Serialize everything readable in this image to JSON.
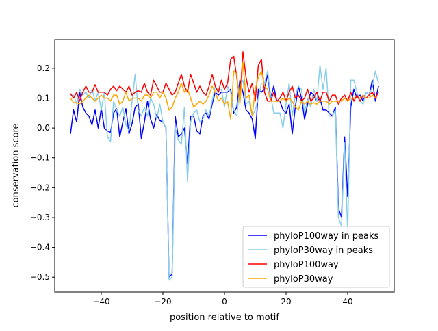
{
  "chart_data": {
    "type": "line",
    "title": "",
    "xlabel": "position relative to motif",
    "ylabel": "conservation score",
    "xlim": [
      -55.1,
      55.1
    ],
    "ylim": [
      -0.55,
      0.296
    ],
    "xticks": [
      -40,
      -20,
      0,
      20,
      40
    ],
    "xtick_labels": [
      "−40",
      "−20",
      "0",
      "20",
      "40"
    ],
    "yticks": [
      -0.5,
      -0.4,
      -0.3,
      -0.2,
      -0.1,
      0.0,
      0.1,
      0.2
    ],
    "ytick_labels": [
      "−0.5",
      "−0.4",
      "−0.3",
      "−0.2",
      "−0.1",
      "0.0",
      "0.1",
      "0.2"
    ],
    "grid": false,
    "legend_placement": "lower-right",
    "x_start": -50,
    "x_step": 1,
    "series": [
      {
        "name": "phyloP100way in peaks",
        "color": "#0000ff",
        "values": [
          -0.02,
          0.06,
          0.02,
          0.12,
          0.07,
          0.05,
          0.04,
          0.01,
          0.06,
          0.0,
          0.065,
          0.0,
          -0.01,
          -0.015,
          0.05,
          0.065,
          -0.03,
          0.02,
          0.065,
          -0.02,
          0.015,
          0.07,
          0.08,
          -0.035,
          0.02,
          0.09,
          0.03,
          0.0,
          0.045,
          0.025,
          0.02,
          0.0,
          -0.5,
          -0.49,
          0.04,
          -0.03,
          -0.02,
          0.0,
          -0.12,
          0.04,
          0.04,
          -0.01,
          -0.02,
          0.04,
          0.05,
          0.03,
          0.08,
          0.12,
          0.11,
          0.12,
          0.12,
          0.12,
          0.13,
          0.05,
          0.07,
          0.16,
          0.12,
          0.06,
          0.05,
          0.03,
          -0.035,
          0.13,
          0.12,
          0.13,
          0.18,
          0.1,
          0.14,
          0.09,
          0.09,
          0.06,
          0.05,
          0.08,
          -0.02,
          0.07,
          0.14,
          0.1,
          0.03,
          0.08,
          0.12,
          0.11,
          0.09,
          0.1,
          0.06,
          0.06,
          0.05,
          0.04,
          0.07,
          -0.27,
          -0.3,
          -0.03,
          -0.23,
          0.07,
          0.13,
          0.1,
          0.11,
          0.09,
          0.12,
          0.11,
          0.16,
          0.09,
          0.14
        ]
      },
      {
        "name": "phyloP30way in peaks",
        "color": "#87ceeb",
        "values": [
          0.11,
          0.11,
          0.08,
          0.13,
          0.11,
          0.12,
          0.1,
          0.13,
          0.09,
          0.12,
          0.06,
          0.12,
          -0.03,
          -0.045,
          0.09,
          0.06,
          0.04,
          0.07,
          0.01,
          -0.01,
          0.09,
          0.18,
          0.06,
          0.04,
          0.07,
          0.04,
          0.1,
          0.08,
          0.03,
          0.08,
          0.02,
          0.0,
          -0.51,
          -0.5,
          0.0,
          -0.04,
          -0.055,
          0.07,
          -0.18,
          0.02,
          0.05,
          0.06,
          0.02,
          0.03,
          0.06,
          0.04,
          0.09,
          0.14,
          0.12,
          0.13,
          0.07,
          0.14,
          0.12,
          0.06,
          0.04,
          0.14,
          0.16,
          0.08,
          0.09,
          0.04,
          0.06,
          0.1,
          0.15,
          0.15,
          0.19,
          0.11,
          0.05,
          0.05,
          0.05,
          0.0,
          0.08,
          0.15,
          0.04,
          0.11,
          0.14,
          0.13,
          0.05,
          0.1,
          0.07,
          0.13,
          0.09,
          0.21,
          0.13,
          0.2,
          0.04,
          0.04,
          0.06,
          -0.3,
          -0.33,
          -0.05,
          -0.35,
          0.16,
          0.16,
          0.12,
          0.09,
          0.08,
          0.12,
          0.11,
          0.14,
          0.19,
          0.15
        ]
      },
      {
        "name": "phyloP100way",
        "color": "#ff0000",
        "values": [
          0.115,
          0.1,
          0.12,
          0.09,
          0.12,
          0.14,
          0.12,
          0.12,
          0.145,
          0.12,
          0.12,
          0.12,
          0.11,
          0.13,
          0.14,
          0.125,
          0.14,
          0.13,
          0.12,
          0.14,
          0.11,
          0.12,
          0.125,
          0.12,
          0.15,
          0.12,
          0.11,
          0.16,
          0.14,
          0.12,
          0.12,
          0.15,
          0.13,
          0.11,
          0.12,
          0.15,
          0.18,
          0.14,
          0.12,
          0.18,
          0.15,
          0.12,
          0.14,
          0.12,
          0.11,
          0.14,
          0.18,
          0.14,
          0.12,
          0.16,
          0.13,
          0.15,
          0.23,
          0.24,
          0.17,
          0.09,
          0.255,
          0.17,
          0.12,
          0.15,
          0.09,
          0.21,
          0.23,
          0.12,
          0.09,
          0.09,
          0.12,
          0.09,
          0.1,
          0.12,
          0.09,
          0.12,
          0.14,
          0.1,
          0.11,
          0.09,
          0.1,
          0.13,
          0.09,
          0.1,
          0.12,
          0.09,
          0.12,
          0.12,
          0.09,
          0.11,
          0.11,
          0.08,
          0.1,
          0.11,
          0.09,
          0.12,
          0.09,
          0.11,
          0.09,
          0.11,
          0.1,
          0.11,
          0.12,
          0.1,
          0.12
        ]
      },
      {
        "name": "phyloP30way",
        "color": "#ffa500",
        "values": [
          0.1,
          0.085,
          0.085,
          0.08,
          0.09,
          0.1,
          0.11,
          0.1,
          0.09,
          0.1,
          0.11,
          0.1,
          0.1,
          0.09,
          0.11,
          0.11,
          0.08,
          0.09,
          0.12,
          0.09,
          0.1,
          0.1,
          0.1,
          0.09,
          0.11,
          0.11,
          0.1,
          0.12,
          0.12,
          0.1,
          0.12,
          0.1,
          0.06,
          0.07,
          0.1,
          0.12,
          0.15,
          0.12,
          0.13,
          0.1,
          0.07,
          0.08,
          0.09,
          0.08,
          0.09,
          0.11,
          0.14,
          0.12,
          0.09,
          0.1,
          0.08,
          0.09,
          0.03,
          0.19,
          0.18,
          0.08,
          0.22,
          0.1,
          0.11,
          0.04,
          0.13,
          0.17,
          0.19,
          0.14,
          0.13,
          0.09,
          0.09,
          0.09,
          0.09,
          0.1,
          0.09,
          0.1,
          0.09,
          0.07,
          0.06,
          0.09,
          0.08,
          0.09,
          0.08,
          0.085,
          0.08,
          0.09,
          0.09,
          0.09,
          0.08,
          0.09,
          0.09,
          0.09,
          0.09,
          0.1,
          0.09,
          0.1,
          0.1,
          0.1,
          0.1,
          0.11,
          0.1,
          0.1,
          0.11,
          0.1,
          0.1
        ]
      }
    ]
  }
}
